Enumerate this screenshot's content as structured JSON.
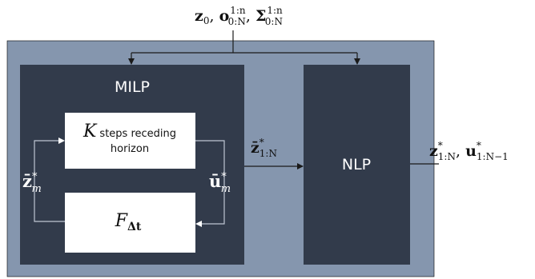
{
  "colors": {
    "outer_panel": "#8596ae",
    "inner_block": "#323b4b",
    "white_box": "#ffffff",
    "line": "#1a1a1a",
    "light_text": "#ffffff",
    "dark_text": "#111111"
  },
  "top_input_label": {
    "z0_base": "z",
    "z0_sub": "0",
    "sep1": ", ",
    "o_base": "o",
    "o_sub": "0:N",
    "o_sup": "1:n",
    "sep2": ", ",
    "sigma_base": "Σ",
    "sigma_sub": "0:N",
    "sigma_sup": "1:n"
  },
  "milp_block": {
    "title": "MILP"
  },
  "receding_box": {
    "k_symbol": "K",
    "line1": "steps receding",
    "line2": "horizon"
  },
  "f_box": {
    "base": "F",
    "sub": "Δt"
  },
  "zbar_m_label": {
    "base": "z̄",
    "sup": "*",
    "sub": "m"
  },
  "ubar_m_label": {
    "base": "ū",
    "sup": "*",
    "sub": "m"
  },
  "milp_to_nlp_label": {
    "base": "z̄",
    "sup": "*",
    "sub": "1:N"
  },
  "nlp_block": {
    "title": "NLP"
  },
  "output_label": {
    "z_base": "z",
    "z_sup": "*",
    "z_sub": "1:N",
    "sep": ", ",
    "u_base": "u",
    "u_sup": "*",
    "u_sub": "1:N−1"
  }
}
